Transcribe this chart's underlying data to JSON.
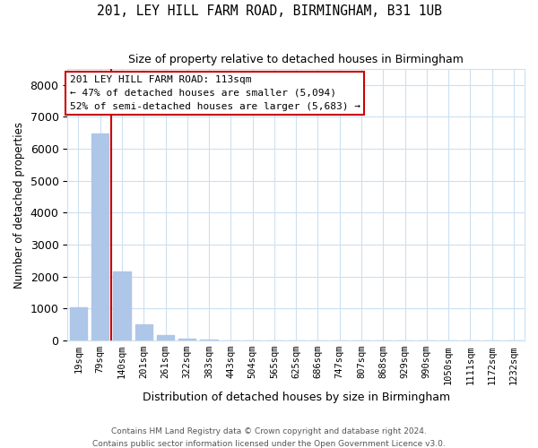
{
  "title": "201, LEY HILL FARM ROAD, BIRMINGHAM, B31 1UB",
  "subtitle": "Size of property relative to detached houses in Birmingham",
  "xlabel": "Distribution of detached houses by size in Birmingham",
  "ylabel": "Number of detached properties",
  "categories": [
    "19sqm",
    "79sqm",
    "140sqm",
    "201sqm",
    "261sqm",
    "322sqm",
    "383sqm",
    "443sqm",
    "504sqm",
    "565sqm",
    "625sqm",
    "686sqm",
    "747sqm",
    "807sqm",
    "868sqm",
    "929sqm",
    "990sqm",
    "1050sqm",
    "1111sqm",
    "1172sqm",
    "1232sqm"
  ],
  "values": [
    1050,
    6480,
    2150,
    520,
    160,
    55,
    25,
    15,
    10,
    7,
    5,
    4,
    3,
    3,
    2,
    2,
    2,
    1,
    1,
    1,
    1
  ],
  "bar_color": "#aec6e8",
  "property_line_index": 1.5,
  "annotation_text": "201 LEY HILL FARM ROAD: 113sqm\n← 47% of detached houses are smaller (5,094)\n52% of semi-detached houses are larger (5,683) →",
  "annotation_box_color": "#cc0000",
  "footer1": "Contains HM Land Registry data © Crown copyright and database right 2024.",
  "footer2": "Contains public sector information licensed under the Open Government Licence v3.0.",
  "ylim": [
    0,
    8500
  ],
  "figsize": [
    6.0,
    5.0
  ],
  "dpi": 100,
  "grid_color": "#cce0f0"
}
